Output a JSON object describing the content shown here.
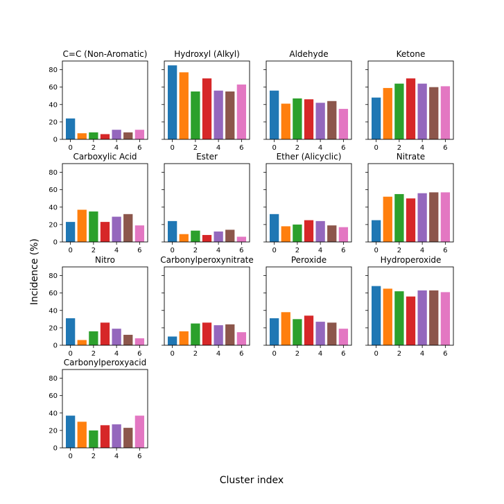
{
  "figure": {
    "ylabel": "Incidence (%)",
    "xlabel": "Cluster index"
  },
  "colors": [
    "#1f77b4",
    "#ff7f0e",
    "#2ca02c",
    "#d62728",
    "#9467bd",
    "#8c564b",
    "#e377c2"
  ],
  "chart_data": [
    {
      "type": "bar",
      "title": "C=C (Non-Aromatic)",
      "x": [
        0,
        1,
        2,
        3,
        4,
        5,
        6
      ],
      "values": [
        24,
        7,
        8,
        6,
        11,
        8,
        11
      ],
      "ylim": [
        0,
        90
      ],
      "yticks": [
        0,
        20,
        40,
        60,
        80
      ],
      "xticks": [
        0,
        2,
        4,
        6
      ]
    },
    {
      "type": "bar",
      "title": "Hydroxyl (Alkyl)",
      "x": [
        0,
        1,
        2,
        3,
        4,
        5,
        6
      ],
      "values": [
        85,
        77,
        55,
        70,
        56,
        55,
        63
      ],
      "ylim": [
        0,
        90
      ],
      "yticks": [
        0,
        20,
        40,
        60,
        80
      ],
      "xticks": [
        0,
        2,
        4,
        6
      ]
    },
    {
      "type": "bar",
      "title": "Aldehyde",
      "x": [
        0,
        1,
        2,
        3,
        4,
        5,
        6
      ],
      "values": [
        56,
        41,
        47,
        46,
        42,
        44,
        35
      ],
      "ylim": [
        0,
        90
      ],
      "yticks": [
        0,
        20,
        40,
        60,
        80
      ],
      "xticks": [
        0,
        2,
        4,
        6
      ]
    },
    {
      "type": "bar",
      "title": "Ketone",
      "x": [
        0,
        1,
        2,
        3,
        4,
        5,
        6
      ],
      "values": [
        48,
        59,
        64,
        70,
        64,
        60,
        61
      ],
      "ylim": [
        0,
        90
      ],
      "yticks": [
        0,
        20,
        40,
        60,
        80
      ],
      "xticks": [
        0,
        2,
        4,
        6
      ]
    },
    {
      "type": "bar",
      "title": "Carboxylic Acid",
      "x": [
        0,
        1,
        2,
        3,
        4,
        5,
        6
      ],
      "values": [
        23,
        37,
        35,
        23,
        29,
        32,
        19
      ],
      "ylim": [
        0,
        90
      ],
      "yticks": [
        0,
        20,
        40,
        60,
        80
      ],
      "xticks": [
        0,
        2,
        4,
        6
      ]
    },
    {
      "type": "bar",
      "title": "Ester",
      "x": [
        0,
        1,
        2,
        3,
        4,
        5,
        6
      ],
      "values": [
        24,
        9,
        13,
        8,
        12,
        14,
        6
      ],
      "ylim": [
        0,
        90
      ],
      "yticks": [
        0,
        20,
        40,
        60,
        80
      ],
      "xticks": [
        0,
        2,
        4,
        6
      ]
    },
    {
      "type": "bar",
      "title": "Ether (Alicyclic)",
      "x": [
        0,
        1,
        2,
        3,
        4,
        5,
        6
      ],
      "values": [
        32,
        18,
        20,
        25,
        24,
        19,
        17
      ],
      "ylim": [
        0,
        90
      ],
      "yticks": [
        0,
        20,
        40,
        60,
        80
      ],
      "xticks": [
        0,
        2,
        4,
        6
      ]
    },
    {
      "type": "bar",
      "title": "Nitrate",
      "x": [
        0,
        1,
        2,
        3,
        4,
        5,
        6
      ],
      "values": [
        25,
        52,
        55,
        50,
        56,
        57,
        57
      ],
      "ylim": [
        0,
        90
      ],
      "yticks": [
        0,
        20,
        40,
        60,
        80
      ],
      "xticks": [
        0,
        2,
        4,
        6
      ]
    },
    {
      "type": "bar",
      "title": "Nitro",
      "x": [
        0,
        1,
        2,
        3,
        4,
        5,
        6
      ],
      "values": [
        31,
        6,
        16,
        26,
        19,
        12,
        8
      ],
      "ylim": [
        0,
        90
      ],
      "yticks": [
        0,
        20,
        40,
        60,
        80
      ],
      "xticks": [
        0,
        2,
        4,
        6
      ]
    },
    {
      "type": "bar",
      "title": "Carbonylperoxynitrate",
      "x": [
        0,
        1,
        2,
        3,
        4,
        5,
        6
      ],
      "values": [
        10,
        16,
        25,
        26,
        23,
        24,
        15
      ],
      "ylim": [
        0,
        90
      ],
      "yticks": [
        0,
        20,
        40,
        60,
        80
      ],
      "xticks": [
        0,
        2,
        4,
        6
      ]
    },
    {
      "type": "bar",
      "title": "Peroxide",
      "x": [
        0,
        1,
        2,
        3,
        4,
        5,
        6
      ],
      "values": [
        31,
        38,
        30,
        34,
        27,
        26,
        19
      ],
      "ylim": [
        0,
        90
      ],
      "yticks": [
        0,
        20,
        40,
        60,
        80
      ],
      "xticks": [
        0,
        2,
        4,
        6
      ]
    },
    {
      "type": "bar",
      "title": "Hydroperoxide",
      "x": [
        0,
        1,
        2,
        3,
        4,
        5,
        6
      ],
      "values": [
        68,
        65,
        62,
        56,
        63,
        63,
        61
      ],
      "ylim": [
        0,
        90
      ],
      "yticks": [
        0,
        20,
        40,
        60,
        80
      ],
      "xticks": [
        0,
        2,
        4,
        6
      ]
    },
    {
      "type": "bar",
      "title": "Carbonylperoxyacid",
      "x": [
        0,
        1,
        2,
        3,
        4,
        5,
        6
      ],
      "values": [
        37,
        30,
        20,
        26,
        27,
        23,
        37
      ],
      "ylim": [
        0,
        90
      ],
      "yticks": [
        0,
        20,
        40,
        60,
        80
      ],
      "xticks": [
        0,
        2,
        4,
        6
      ]
    }
  ]
}
